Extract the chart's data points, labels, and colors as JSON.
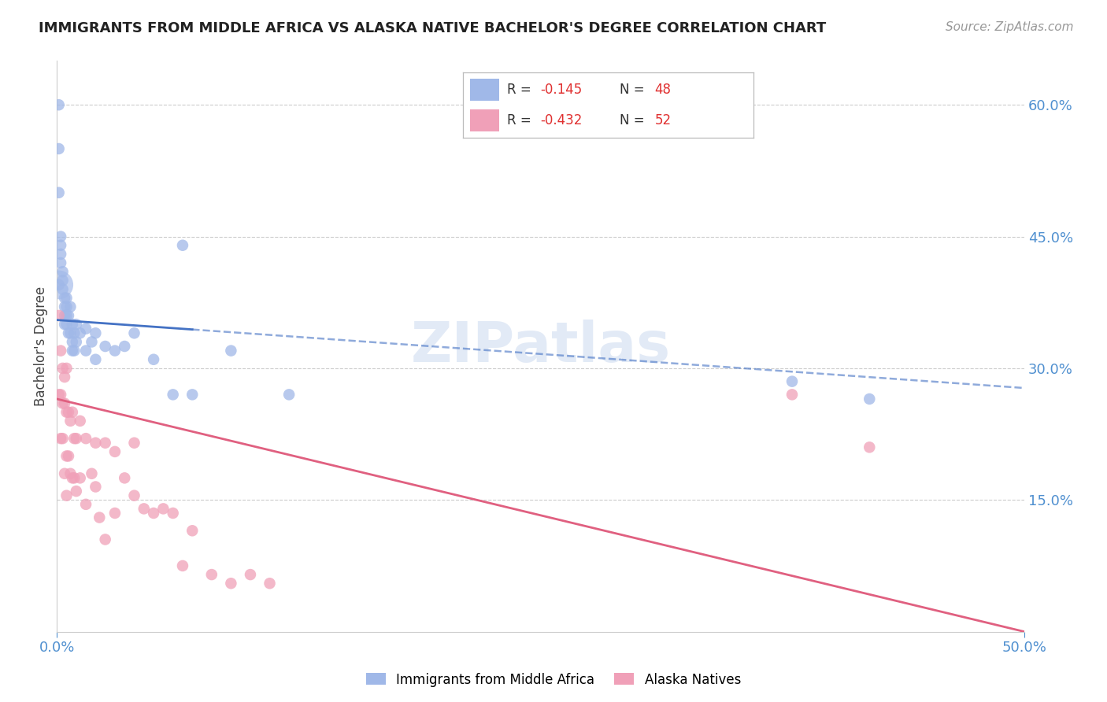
{
  "title": "IMMIGRANTS FROM MIDDLE AFRICA VS ALASKA NATIVE BACHELOR'S DEGREE CORRELATION CHART",
  "source": "Source: ZipAtlas.com",
  "ylabel": "Bachelor's Degree",
  "y_tick_labels_right": [
    "60.0%",
    "45.0%",
    "30.0%",
    "15.0%"
  ],
  "y_tick_positions_right": [
    0.6,
    0.45,
    0.3,
    0.15
  ],
  "x_lim": [
    0.0,
    0.5
  ],
  "y_lim": [
    0.0,
    0.65
  ],
  "watermark": "ZIPatlas",
  "blue_scatter_x": [
    0.001,
    0.001,
    0.001,
    0.002,
    0.002,
    0.002,
    0.002,
    0.003,
    0.003,
    0.003,
    0.004,
    0.004,
    0.004,
    0.004,
    0.005,
    0.005,
    0.005,
    0.005,
    0.006,
    0.006,
    0.007,
    0.007,
    0.008,
    0.008,
    0.008,
    0.009,
    0.009,
    0.01,
    0.01,
    0.012,
    0.015,
    0.015,
    0.018,
    0.02,
    0.02,
    0.025,
    0.03,
    0.035,
    0.04,
    0.05,
    0.06,
    0.065,
    0.07,
    0.09,
    0.12,
    0.38,
    0.42,
    0.001
  ],
  "blue_scatter_y": [
    0.6,
    0.55,
    0.5,
    0.45,
    0.44,
    0.43,
    0.42,
    0.41,
    0.4,
    0.39,
    0.38,
    0.37,
    0.36,
    0.35,
    0.38,
    0.37,
    0.36,
    0.35,
    0.36,
    0.34,
    0.37,
    0.34,
    0.35,
    0.33,
    0.32,
    0.34,
    0.32,
    0.35,
    0.33,
    0.34,
    0.345,
    0.32,
    0.33,
    0.34,
    0.31,
    0.325,
    0.32,
    0.325,
    0.34,
    0.31,
    0.27,
    0.44,
    0.27,
    0.32,
    0.27,
    0.285,
    0.265,
    0.395
  ],
  "blue_large_x": [
    0.001
  ],
  "blue_large_y": [
    0.395
  ],
  "pink_scatter_x": [
    0.001,
    0.001,
    0.002,
    0.002,
    0.002,
    0.003,
    0.003,
    0.003,
    0.004,
    0.004,
    0.004,
    0.005,
    0.005,
    0.005,
    0.005,
    0.006,
    0.006,
    0.007,
    0.007,
    0.008,
    0.008,
    0.009,
    0.009,
    0.01,
    0.01,
    0.012,
    0.012,
    0.015,
    0.015,
    0.018,
    0.02,
    0.02,
    0.022,
    0.025,
    0.025,
    0.03,
    0.03,
    0.035,
    0.04,
    0.04,
    0.045,
    0.05,
    0.055,
    0.06,
    0.065,
    0.07,
    0.08,
    0.09,
    0.1,
    0.11,
    0.38,
    0.42
  ],
  "pink_scatter_y": [
    0.36,
    0.27,
    0.32,
    0.27,
    0.22,
    0.3,
    0.26,
    0.22,
    0.29,
    0.26,
    0.18,
    0.3,
    0.25,
    0.2,
    0.155,
    0.25,
    0.2,
    0.24,
    0.18,
    0.25,
    0.175,
    0.22,
    0.175,
    0.22,
    0.16,
    0.24,
    0.175,
    0.22,
    0.145,
    0.18,
    0.215,
    0.165,
    0.13,
    0.215,
    0.105,
    0.205,
    0.135,
    0.175,
    0.215,
    0.155,
    0.14,
    0.135,
    0.14,
    0.135,
    0.075,
    0.115,
    0.065,
    0.055,
    0.065,
    0.055,
    0.27,
    0.21
  ],
  "blue_line_color": "#4472c4",
  "blue_dash_color": "#4472c4",
  "pink_line_color": "#e06080",
  "blue_dot_color": "#a0b8e8",
  "pink_dot_color": "#f0a0b8",
  "grid_color": "#cccccc",
  "right_axis_color": "#5090d0",
  "background_color": "#ffffff",
  "title_fontsize": 13,
  "source_fontsize": 11,
  "watermark_color": "#d0ddf0",
  "watermark_fontsize": 52,
  "R_blue": -0.145,
  "R_pink": -0.432,
  "N_blue": 48,
  "N_pink": 52,
  "blue_intercept": 0.355,
  "blue_slope": -0.155,
  "pink_intercept": 0.265,
  "pink_slope": -0.53
}
